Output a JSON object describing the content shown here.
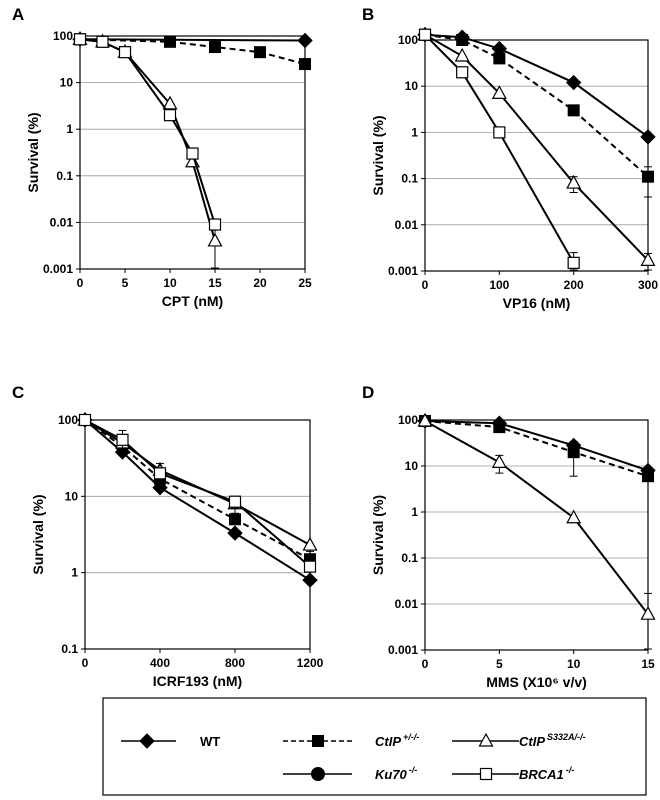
{
  "legend": {
    "items": [
      {
        "key": "wt",
        "label": "WT",
        "sup": "",
        "marker": "diamond-filled",
        "dash": false
      },
      {
        "key": "ctip",
        "label": "CtIP",
        "sup": "+/-/-",
        "marker": "square-filled",
        "dash": true
      },
      {
        "key": "s332a",
        "label": "CtIP",
        "sup": "S332A/-/-",
        "marker": "triangle-open",
        "dash": false
      },
      {
        "key": "ku70",
        "label": "Ku70",
        "sup": "-/-",
        "marker": "circle-filled",
        "dash": false
      },
      {
        "key": "brca1",
        "label": "BRCA1",
        "sup": "-/-",
        "marker": "square-open",
        "dash": false
      }
    ]
  },
  "chart_data": [
    {
      "panel": "A",
      "type": "line",
      "xlabel": "CPT (nM)",
      "ylabel": "Survival (%)",
      "yscale": "log",
      "xlim": [
        0,
        25
      ],
      "ylim": [
        0.001,
        100
      ],
      "xticks": [
        0,
        5,
        10,
        15,
        20,
        25
      ],
      "yticks": [
        100,
        10,
        1,
        0.1,
        0.01,
        0.001
      ],
      "ytick_labels": [
        "100",
        "10",
        "1",
        "0.1",
        "0.01",
        "0.001"
      ],
      "grid": true,
      "series": [
        {
          "key": "wt",
          "marker": "diamond-filled",
          "dash": false,
          "x": [
            0,
            25
          ],
          "y": [
            85,
            80
          ],
          "err": [
            0,
            0
          ]
        },
        {
          "key": "ctip",
          "marker": "square-filled",
          "dash": true,
          "x": [
            0,
            10,
            15,
            20,
            25
          ],
          "y": [
            85,
            75,
            58,
            45,
            25
          ],
          "err": [
            0,
            0,
            0,
            0,
            0
          ]
        },
        {
          "key": "s332a",
          "marker": "triangle-open",
          "dash": false,
          "x": [
            0,
            2.5,
            5,
            10,
            12.5,
            15
          ],
          "y": [
            85,
            75,
            45,
            3.5,
            0.2,
            0.004
          ],
          "err": [
            0,
            0,
            0,
            0,
            0,
            0.003
          ]
        },
        {
          "key": "brca1",
          "marker": "square-open",
          "dash": false,
          "x": [
            0,
            2.5,
            5,
            10,
            12.5,
            15
          ],
          "y": [
            85,
            75,
            45,
            2,
            0.3,
            0.009
          ],
          "err": [
            0,
            0,
            0,
            0,
            0,
            0
          ]
        }
      ]
    },
    {
      "panel": "B",
      "type": "line",
      "xlabel": "VP16 (nM)",
      "ylabel": "Survival (%)",
      "yscale": "log",
      "xlim": [
        0,
        300
      ],
      "ylim": [
        0.001,
        100
      ],
      "xticks": [
        0,
        100,
        200,
        300
      ],
      "yticks": [
        100,
        10,
        1,
        0.1,
        0.01,
        0.001
      ],
      "ytick_labels": [
        "100",
        "10",
        "1",
        "0.1",
        "0.01",
        "0.001"
      ],
      "grid": true,
      "series": [
        {
          "key": "wt",
          "marker": "diamond-filled",
          "dash": false,
          "x": [
            0,
            50,
            100,
            200,
            300
          ],
          "y": [
            130,
            115,
            65,
            12,
            0.8
          ],
          "err": [
            0,
            0,
            0,
            0,
            0
          ]
        },
        {
          "key": "ctip",
          "marker": "square-filled",
          "dash": true,
          "x": [
            0,
            50,
            100,
            200,
            300
          ],
          "y": [
            130,
            100,
            40,
            3,
            0.11
          ],
          "err": [
            0,
            0,
            0,
            0,
            0.07
          ]
        },
        {
          "key": "s332a",
          "marker": "triangle-open",
          "dash": false,
          "x": [
            0,
            50,
            100,
            200,
            300
          ],
          "y": [
            130,
            45,
            7,
            0.08,
            0.0017
          ],
          "err": [
            0,
            0,
            0,
            0.03,
            0.0007
          ]
        },
        {
          "key": "brca1",
          "marker": "square-open",
          "dash": false,
          "x": [
            0,
            50,
            100,
            200
          ],
          "y": [
            130,
            20,
            1,
            0.0015
          ],
          "err": [
            0,
            0,
            0,
            0.001
          ]
        }
      ]
    },
    {
      "panel": "C",
      "type": "line",
      "xlabel": "ICRF193 (nM)",
      "ylabel": "Survival (%)",
      "yscale": "log",
      "xlim": [
        0,
        1200
      ],
      "ylim": [
        0.1,
        100
      ],
      "xticks": [
        0,
        400,
        800,
        1200
      ],
      "yticks": [
        100,
        10,
        1,
        0.1
      ],
      "ytick_labels": [
        "100",
        "10",
        "1",
        "0.1"
      ],
      "grid": true,
      "series": [
        {
          "key": "wt",
          "marker": "diamond-filled",
          "dash": false,
          "x": [
            0,
            200,
            400,
            800,
            1200
          ],
          "y": [
            100,
            38,
            13,
            3.3,
            0.8
          ],
          "err": [
            0,
            0,
            0,
            0,
            0
          ]
        },
        {
          "key": "ctip",
          "marker": "square-filled",
          "dash": true,
          "x": [
            0,
            200,
            400,
            800,
            1200
          ],
          "y": [
            100,
            45,
            17,
            5,
            1.5
          ],
          "err": [
            0,
            0,
            0,
            0,
            0.4
          ]
        },
        {
          "key": "s332a",
          "marker": "triangle-open",
          "dash": false,
          "x": [
            0,
            200,
            400,
            800,
            1200
          ],
          "y": [
            100,
            50,
            22,
            8,
            2.3
          ],
          "err": [
            0,
            0,
            0,
            2,
            0
          ]
        },
        {
          "key": "brca1",
          "marker": "square-open",
          "dash": false,
          "x": [
            0,
            200,
            400,
            800,
            1200
          ],
          "y": [
            100,
            55,
            20,
            8.5,
            1.2
          ],
          "err": [
            0,
            18,
            7,
            1.5,
            0
          ]
        }
      ]
    },
    {
      "panel": "D",
      "type": "line",
      "xlabel": "MMS (X10⁶ v/v)",
      "ylabel": "Survival (%)",
      "yscale": "log",
      "xlim": [
        0,
        15
      ],
      "ylim": [
        0.001,
        100
      ],
      "xticks": [
        0,
        5,
        10,
        15
      ],
      "yticks": [
        100,
        10,
        1,
        0.1,
        0.01,
        0.001
      ],
      "ytick_labels": [
        "100",
        "10",
        "1",
        "0.1",
        "0.01",
        "0.001"
      ],
      "grid": true,
      "series": [
        {
          "key": "wt",
          "marker": "diamond-filled",
          "dash": false,
          "x": [
            0,
            5,
            10,
            15
          ],
          "y": [
            95,
            85,
            28,
            8
          ],
          "err": [
            0,
            0,
            0,
            0
          ]
        },
        {
          "key": "ctip",
          "marker": "square-filled",
          "dash": true,
          "x": [
            0,
            5,
            10,
            15
          ],
          "y": [
            95,
            70,
            20,
            6
          ],
          "err": [
            0,
            0,
            14,
            0
          ]
        },
        {
          "key": "s332a",
          "marker": "triangle-open",
          "dash": false,
          "x": [
            0,
            5,
            10,
            15
          ],
          "y": [
            95,
            12,
            0.75,
            0.006
          ],
          "err": [
            0,
            5,
            0,
            0.011
          ]
        }
      ]
    }
  ]
}
